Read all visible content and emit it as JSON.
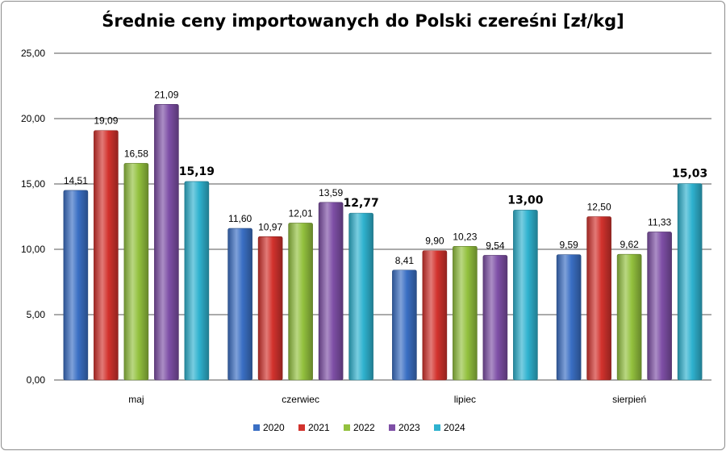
{
  "chart_data": {
    "type": "bar",
    "title": "Średnie ceny importowanych do Polski czereśni [zł/kg]",
    "categories": [
      "maj",
      "czerwiec",
      "lipiec",
      "sierpień"
    ],
    "ylim": [
      0,
      25
    ],
    "yticks": [
      "0,00",
      "5,00",
      "10,00",
      "15,00",
      "20,00",
      "25,00"
    ],
    "grid": true,
    "legend_position": "bottom",
    "series": [
      {
        "name": "2020",
        "color": "#3a6fc4",
        "values": [
          14.51,
          11.6,
          8.41,
          9.59
        ],
        "labels": [
          "14,51",
          "11,60",
          "8,41",
          "9,59"
        ]
      },
      {
        "name": "2021",
        "color": "#d2322d",
        "values": [
          19.09,
          10.97,
          9.9,
          12.5
        ],
        "labels": [
          "19,09",
          "10,97",
          "9,90",
          "12,50"
        ]
      },
      {
        "name": "2022",
        "color": "#93c13e",
        "values": [
          16.58,
          12.01,
          10.23,
          9.62
        ],
        "labels": [
          "16,58",
          "12,01",
          "10,23",
          "9,62"
        ]
      },
      {
        "name": "2023",
        "color": "#7e4fa6",
        "values": [
          21.09,
          13.59,
          9.54,
          11.33
        ],
        "labels": [
          "21,09",
          "13,59",
          "9,54",
          "11,33"
        ]
      },
      {
        "name": "2024",
        "color": "#2fb2cf",
        "values": [
          15.19,
          12.77,
          13.0,
          15.03
        ],
        "labels": [
          "15,19",
          "12,77",
          "13,00",
          "15,03"
        ],
        "bold_labels": true
      }
    ]
  }
}
